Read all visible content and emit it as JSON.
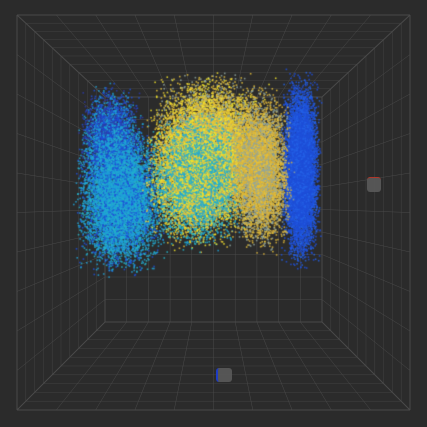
{
  "viewer": {
    "background": "#2b2b2b",
    "grid_color": "#4a4a4a",
    "cloud_colors": [
      "#1f4fd8",
      "#2d3aa8",
      "#1fa3d8",
      "#e8c23a",
      "#f4e62a",
      "#26b5c9",
      "#8fa6a0"
    ]
  },
  "handles": {
    "right_icon": "axis-handle-icon",
    "bottom_icon": "axis-handle-icon",
    "x_axis_color": "#c0392b",
    "z_axis_color": "#1d3fd6"
  }
}
